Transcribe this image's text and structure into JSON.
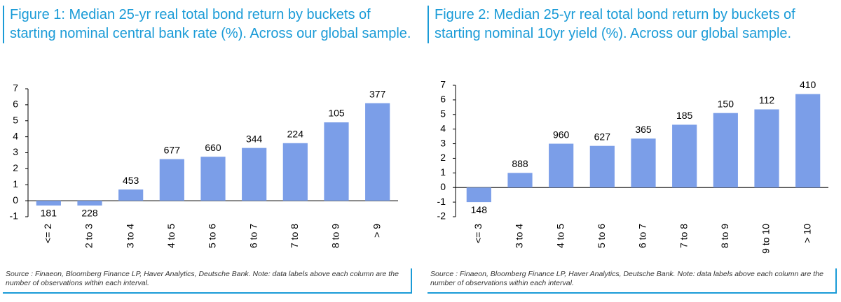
{
  "chart_data": [
    {
      "type": "bar",
      "title": "Figure 1: Median 25-yr real total bond return by buckets of starting nominal central bank rate (%). Across our global sample.",
      "categories": [
        "<= 2",
        "2 to 3",
        "3 to 4",
        "4 to 5",
        "5 to 6",
        "6 to 7",
        "7 to 8",
        "8 to 9",
        "> 9"
      ],
      "values": [
        -0.3,
        -0.3,
        0.7,
        2.6,
        2.75,
        3.3,
        3.6,
        4.9,
        6.1
      ],
      "observations": [
        181,
        228,
        453,
        677,
        660,
        344,
        224,
        105,
        377
      ],
      "color": "#7b9ee8",
      "ylim": [
        -1,
        7
      ],
      "yticks": [
        -1,
        0,
        1,
        2,
        3,
        4,
        5,
        6,
        7
      ],
      "source": "Source : Finaeon, Bloomberg Finance LP, Haver Analytics, Deutsche Bank. Note: data labels above each column are the number of observations within each interval."
    },
    {
      "type": "bar",
      "title": "Figure 2: Median 25-yr real total bond return by buckets of starting nominal 10yr yield (%). Across our global sample.",
      "categories": [
        "<= 3",
        "3 to 4",
        "4 to 5",
        "5 to 6",
        "6 to 7",
        "7 to 8",
        "8 to 9",
        "9 to 10",
        "> 10"
      ],
      "values": [
        -1.0,
        1.0,
        3.0,
        2.85,
        3.35,
        4.3,
        5.1,
        5.35,
        6.4
      ],
      "observations": [
        148,
        888,
        960,
        627,
        365,
        185,
        150,
        112,
        410
      ],
      "color": "#7b9ee8",
      "ylim": [
        -2,
        7
      ],
      "yticks": [
        -2,
        -1,
        0,
        1,
        2,
        3,
        4,
        5,
        6,
        7
      ],
      "source": "Source : Finaeon, Bloomberg Finance LP, Haver Analytics, Deutsche Bank. Note: data labels above each column are the number of observations within each interval."
    }
  ]
}
